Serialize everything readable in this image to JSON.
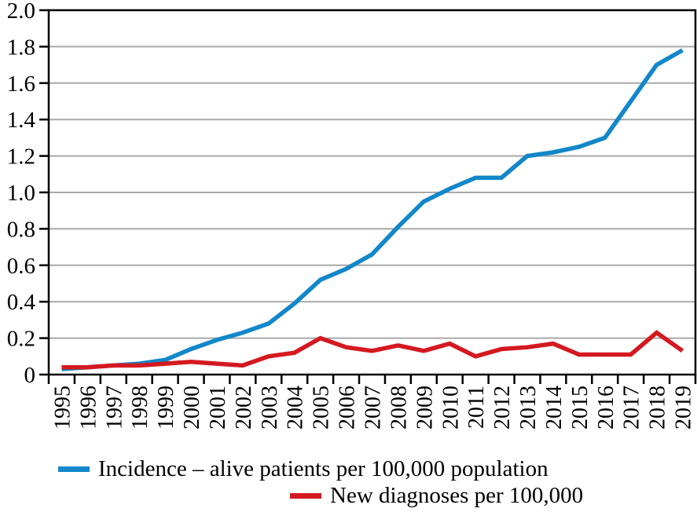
{
  "figure": {
    "background": "#ffffff",
    "frame_color": "#000000",
    "grid_color": "#a9a9a9",
    "tick_color": "#000000"
  },
  "chart_data": {
    "type": "line",
    "title": "",
    "xlabel": "",
    "ylabel": "",
    "x": [
      "1995",
      "1996",
      "1997",
      "1998",
      "1999",
      "2000",
      "2001",
      "2002",
      "2003",
      "2004",
      "2005",
      "2006",
      "2007",
      "2008",
      "2009",
      "2010",
      "2011",
      "2012",
      "2013",
      "2014",
      "2015",
      "2016",
      "2017",
      "2018",
      "2019"
    ],
    "series": [
      {
        "name": "Incidence – alive patients per 100,000 population",
        "color": "#1287c9",
        "values": [
          0.03,
          0.04,
          0.05,
          0.06,
          0.08,
          0.14,
          0.19,
          0.23,
          0.28,
          0.39,
          0.52,
          0.58,
          0.66,
          0.81,
          0.95,
          1.02,
          1.08,
          1.08,
          1.2,
          1.22,
          1.25,
          1.3,
          1.5,
          1.7,
          1.78
        ]
      },
      {
        "name": "New diagnoses per 100,000",
        "color": "#d41920",
        "values": [
          0.04,
          0.04,
          0.05,
          0.05,
          0.06,
          0.07,
          0.06,
          0.05,
          0.1,
          0.12,
          0.2,
          0.15,
          0.13,
          0.16,
          0.13,
          0.17,
          0.1,
          0.14,
          0.15,
          0.17,
          0.11,
          0.11,
          0.11,
          0.23,
          0.13
        ]
      }
    ],
    "ylim": [
      0,
      2.0
    ],
    "yticks": {
      "values": [
        0,
        0.2,
        0.4,
        0.6,
        0.8,
        1.0,
        1.2,
        1.4,
        1.6,
        1.8,
        2.0
      ],
      "labels": [
        "0",
        "0.2",
        "0.4",
        "0.6",
        "0.8",
        "1.0",
        "1.2",
        "1.4",
        "1.6",
        "1.8",
        "2.0"
      ]
    },
    "grid": "horizontal",
    "legend_position": "bottom"
  }
}
